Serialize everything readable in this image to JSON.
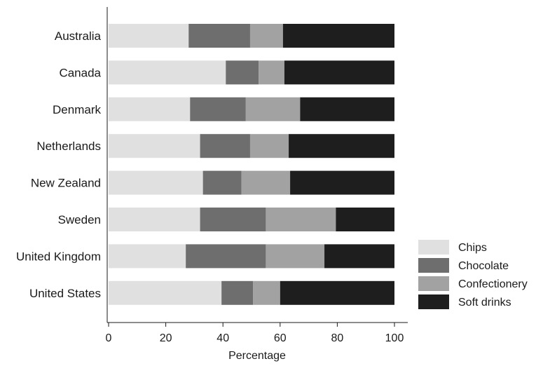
{
  "chart_data": {
    "type": "bar",
    "orientation": "horizontal",
    "stacked": true,
    "title": "",
    "xlabel": "Percentage",
    "ylabel": "",
    "xlim": [
      0,
      100
    ],
    "xticks": [
      0,
      20,
      40,
      60,
      80,
      100
    ],
    "xtick_labels": [
      "0",
      "20",
      "40",
      "60",
      "80",
      "100"
    ],
    "grid": false,
    "legend_position": "bottom-right",
    "categories": [
      "Australia",
      "Canada",
      "Denmark",
      "Netherlands",
      "New Zealand",
      "Sweden",
      "United Kingdom",
      "United States"
    ],
    "series": [
      {
        "name": "Chips",
        "color": "#e0e0e0",
        "values": [
          28,
          41,
          28.5,
          32,
          33,
          32,
          27,
          39.5
        ]
      },
      {
        "name": "Chocolate",
        "color": "#6e6e6e",
        "values": [
          21.5,
          11.5,
          19.5,
          17.5,
          13.5,
          23,
          28,
          11
        ]
      },
      {
        "name": "Confectionery",
        "color": "#a2a2a2",
        "values": [
          11.5,
          9,
          19,
          13.5,
          17,
          24.5,
          20.5,
          9.5
        ]
      },
      {
        "name": "Soft drinks",
        "color": "#1e1e1e",
        "values": [
          39,
          38.5,
          33,
          37,
          36.5,
          20.5,
          24.5,
          40
        ]
      }
    ]
  }
}
